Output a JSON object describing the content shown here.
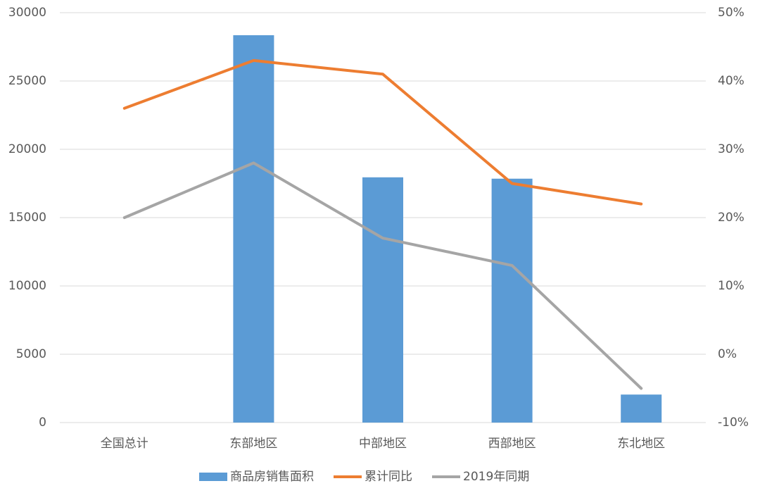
{
  "chart_data": {
    "type": "bar-line",
    "categories": [
      "全国总计",
      "东部地区",
      "中部地区",
      "西部地区",
      "东北地区"
    ],
    "series": [
      {
        "name": "商品房销售面积",
        "type": "bar",
        "color": "#5b9bd5",
        "values": [
          null,
          28350,
          17950,
          17850,
          2050
        ]
      },
      {
        "name": "累计同比",
        "type": "line",
        "axis": "y2",
        "color": "#ed7d31",
        "values": [
          36,
          43,
          41,
          25,
          22
        ]
      },
      {
        "name": "2019年同期",
        "type": "line",
        "axis": "y2",
        "color": "#a5a5a5",
        "values": [
          20,
          28,
          17,
          13,
          -5
        ]
      }
    ],
    "ylim": [
      0,
      30000
    ],
    "yticks": [
      0,
      5000,
      10000,
      15000,
      20000,
      25000,
      30000
    ],
    "y2lim": [
      -10,
      50
    ],
    "y2ticks": [
      {
        "value": -10,
        "label": "-10%"
      },
      {
        "value": 0,
        "label": "0%"
      },
      {
        "value": 10,
        "label": "10%"
      },
      {
        "value": 20,
        "label": "20%"
      },
      {
        "value": 30,
        "label": "30%"
      },
      {
        "value": 40,
        "label": "40%"
      },
      {
        "value": 50,
        "label": "50%"
      }
    ],
    "grid": true,
    "legend": "bottom"
  }
}
